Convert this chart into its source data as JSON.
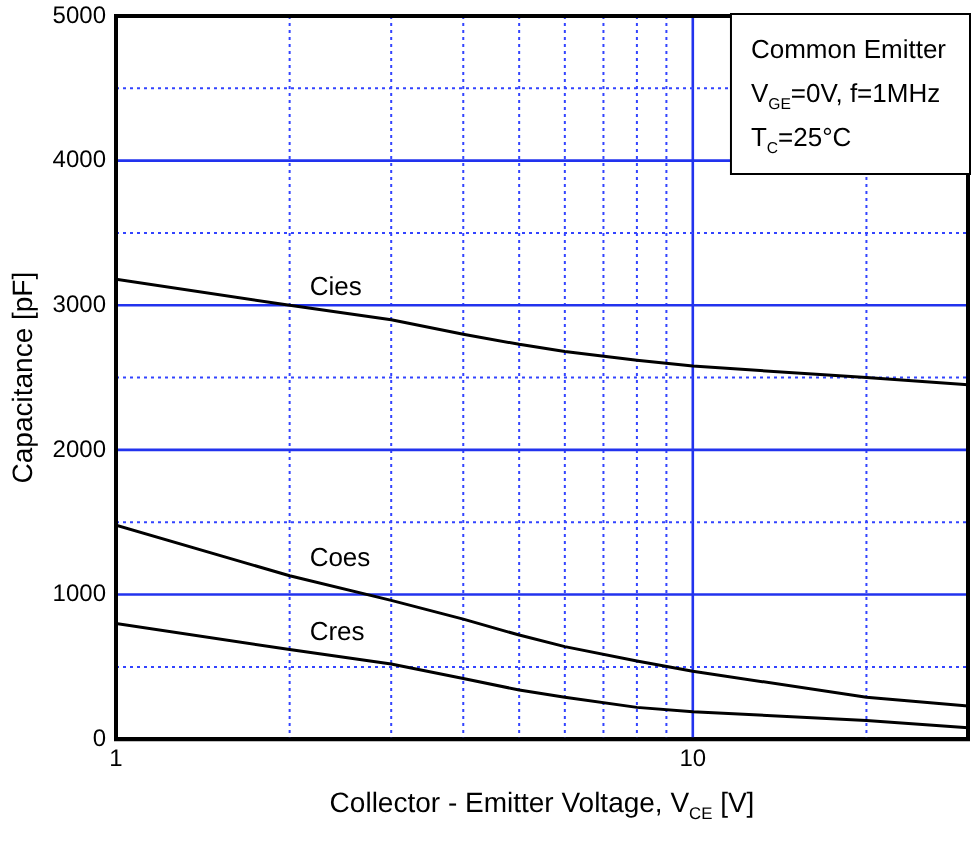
{
  "chart_data": {
    "type": "line",
    "xlabel": "Collector - Emitter Voltage, V$_{CE}$ [V]",
    "ylabel": "Capacitance [pF]",
    "x": [
      1,
      2,
      3,
      4,
      5,
      6,
      8,
      10,
      20,
      30
    ],
    "series": [
      {
        "name": "Cies",
        "color": "#000000",
        "values": [
          3180,
          3000,
          2900,
          2800,
          2730,
          2680,
          2620,
          2580,
          2500,
          2450
        ]
      },
      {
        "name": "Coes",
        "color": "#000000",
        "values": [
          1480,
          1130,
          960,
          830,
          720,
          640,
          540,
          470,
          290,
          230
        ]
      },
      {
        "name": "Cres",
        "color": "#000000",
        "values": [
          800,
          620,
          520,
          420,
          340,
          290,
          220,
          190,
          130,
          80
        ]
      }
    ],
    "annotations": [
      "Common Emitter",
      "V$_{GE}$=0V, f=1MHz",
      "T$_{C}$=25°C"
    ],
    "log": "x",
    "xlim": [
      1,
      30
    ],
    "xticks": [
      1,
      {
        "value": 2,
        "label": null
      },
      {
        "value": 3,
        "label": null
      },
      {
        "value": 4,
        "label": null
      },
      {
        "value": 5,
        "label": null
      },
      {
        "value": 6,
        "label": null
      },
      {
        "value": 7,
        "label": null
      },
      {
        "value": 8,
        "label": null
      },
      {
        "value": 9,
        "label": null
      },
      10,
      {
        "value": 20,
        "label": null
      },
      {
        "value": 30,
        "label": null
      }
    ],
    "ylim": [
      0,
      5000
    ],
    "yticks": [
      0,
      {
        "value": 500,
        "label": null
      },
      1000,
      {
        "value": 1500,
        "label": null
      },
      2000,
      {
        "value": 2500,
        "label": null
      },
      3000,
      {
        "value": 3500,
        "label": null
      },
      4000,
      {
        "value": 4500,
        "label": null
      },
      5000
    ],
    "grid": true,
    "legend": false,
    "marker": "none",
    "line_style": "solid"
  }
}
